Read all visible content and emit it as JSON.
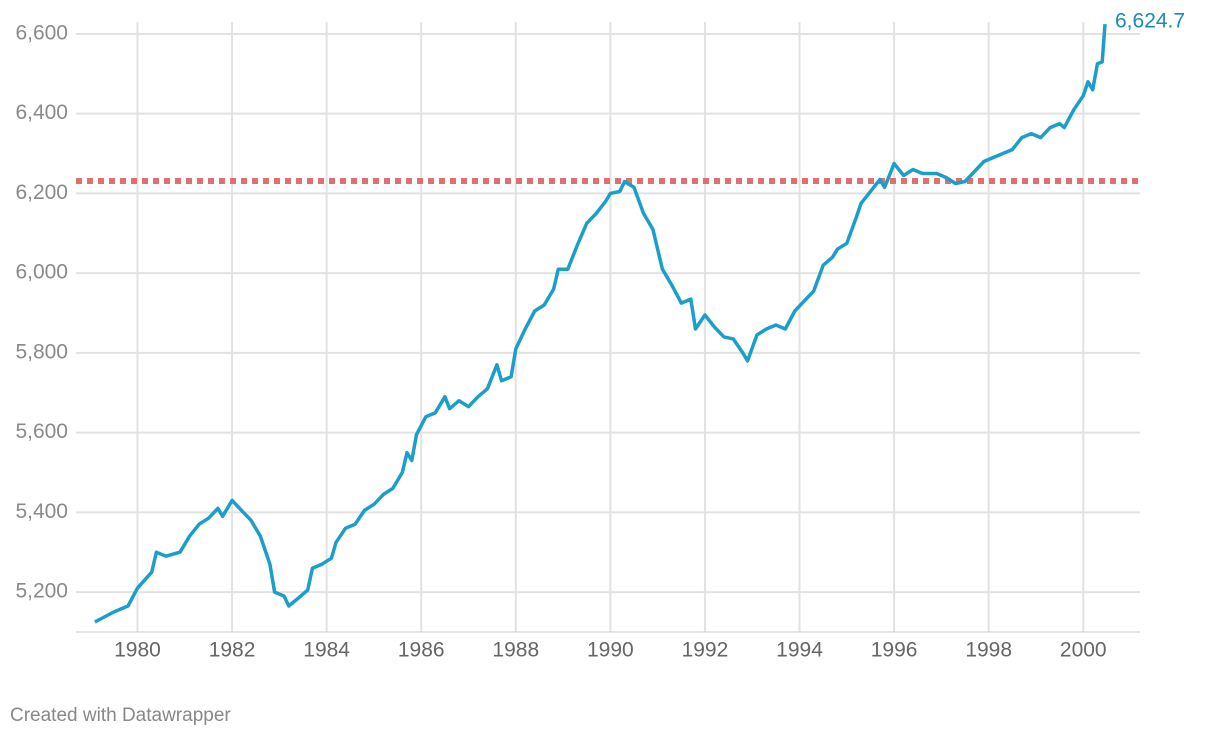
{
  "chart_data": {
    "type": "line",
    "color": "#1b9fca",
    "grid": true,
    "x": [
      1979.1,
      1979.5,
      1979.8,
      1980.0,
      1980.3,
      1980.4,
      1980.6,
      1980.9,
      1981.1,
      1981.3,
      1981.5,
      1981.7,
      1981.8,
      1982.0,
      1982.2,
      1982.4,
      1982.6,
      1982.8,
      1982.9,
      1983.1,
      1983.2,
      1983.4,
      1983.6,
      1983.7,
      1983.9,
      1984.1,
      1984.2,
      1984.4,
      1984.6,
      1984.8,
      1985.0,
      1985.2,
      1985.4,
      1985.6,
      1985.7,
      1985.8,
      1985.9,
      1986.1,
      1986.3,
      1986.5,
      1986.6,
      1986.8,
      1987.0,
      1987.2,
      1987.4,
      1987.6,
      1987.7,
      1987.9,
      1988.0,
      1988.2,
      1988.4,
      1988.6,
      1988.8,
      1988.9,
      1989.1,
      1989.3,
      1989.5,
      1989.7,
      1989.9,
      1990.0,
      1990.2,
      1990.3,
      1990.5,
      1990.7,
      1990.9,
      1991.1,
      1991.3,
      1991.5,
      1991.7,
      1991.8,
      1992.0,
      1992.2,
      1992.4,
      1992.6,
      1992.8,
      1992.9,
      1993.1,
      1993.3,
      1993.5,
      1993.7,
      1993.9,
      1994.1,
      1994.3,
      1994.5,
      1994.7,
      1994.8,
      1995.0,
      1995.2,
      1995.3,
      1995.5,
      1995.7,
      1995.8,
      1996.0,
      1996.2,
      1996.4,
      1996.6,
      1996.9,
      1997.1,
      1997.3,
      1997.5,
      1997.7,
      1997.9,
      1998.1,
      1998.3,
      1998.5,
      1998.7,
      1998.9,
      1999.1,
      1999.3,
      1999.5,
      1999.6,
      1999.8,
      2000.0,
      2000.1,
      2000.2,
      2000.3,
      2000.4,
      2000.46
    ],
    "values": [
      5125,
      5150,
      5165,
      5210,
      5250,
      5300,
      5290,
      5300,
      5340,
      5370,
      5385,
      5410,
      5390,
      5430,
      5405,
      5380,
      5340,
      5270,
      5200,
      5190,
      5165,
      5185,
      5205,
      5260,
      5270,
      5285,
      5325,
      5360,
      5370,
      5405,
      5420,
      5445,
      5460,
      5500,
      5550,
      5530,
      5595,
      5640,
      5650,
      5690,
      5660,
      5680,
      5665,
      5690,
      5710,
      5770,
      5730,
      5740,
      5810,
      5860,
      5905,
      5920,
      5960,
      6010,
      6010,
      6070,
      6125,
      6150,
      6180,
      6200,
      6205,
      6230,
      6215,
      6150,
      6110,
      6010,
      5970,
      5925,
      5935,
      5860,
      5895,
      5865,
      5840,
      5835,
      5800,
      5780,
      5845,
      5860,
      5870,
      5860,
      5905,
      5930,
      5955,
      6020,
      6040,
      6060,
      6075,
      6140,
      6175,
      6205,
      6235,
      6215,
      6275,
      6245,
      6260,
      6250,
      6250,
      6240,
      6225,
      6230,
      6255,
      6280,
      6290,
      6300,
      6310,
      6340,
      6350,
      6340,
      6365,
      6375,
      6365,
      6410,
      6445,
      6480,
      6460,
      6525,
      6530,
      6624.7
    ],
    "end_label": {
      "value": 6624.7,
      "label": "6,624.7"
    },
    "reference_line": {
      "value": 6231,
      "color": "#e07070"
    },
    "xlim": [
      1978.7,
      2001.2
    ],
    "xticks": [
      1980,
      1982,
      1984,
      1986,
      1988,
      1990,
      1992,
      1994,
      1996,
      1998,
      2000
    ],
    "ylim": [
      5130,
      6640
    ],
    "yticks": [
      {
        "value": 5200,
        "label": "5,200"
      },
      {
        "value": 5400,
        "label": "5,400"
      },
      {
        "value": 5600,
        "label": "5,600"
      },
      {
        "value": 5800,
        "label": "5,800"
      },
      {
        "value": 6000,
        "label": "6,000"
      },
      {
        "value": 6200,
        "label": "6,200"
      },
      {
        "value": 6400,
        "label": "6,400"
      },
      {
        "value": 6600,
        "label": "6,600"
      }
    ],
    "footer": "Created with Datawrapper"
  }
}
